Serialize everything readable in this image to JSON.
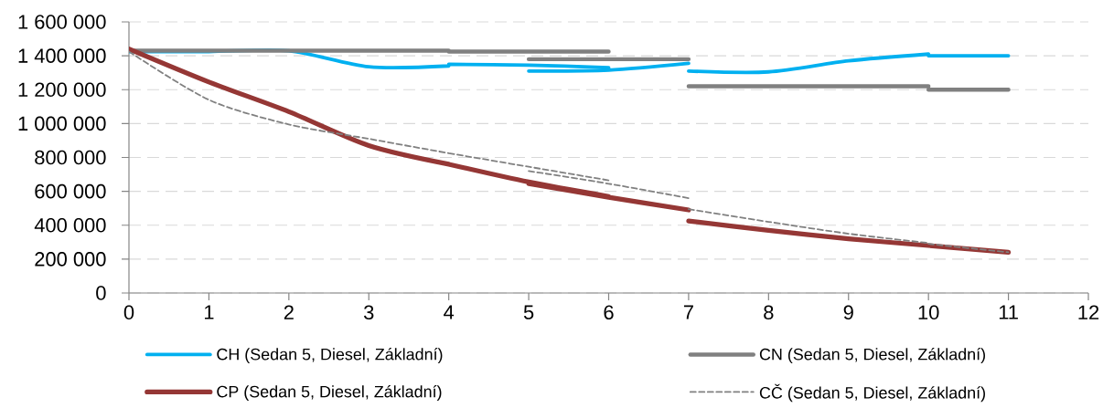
{
  "chart_data": {
    "type": "line",
    "xlim": [
      0,
      12
    ],
    "xticks": [
      0,
      1,
      2,
      3,
      4,
      5,
      6,
      7,
      8,
      9,
      10,
      11,
      12
    ],
    "ylim": [
      0,
      1600000
    ],
    "yticks": [
      0,
      {
        "value": 200000,
        "label": "200 000"
      },
      {
        "value": 400000,
        "label": "400 000"
      },
      {
        "value": 600000,
        "label": "600 000"
      },
      {
        "value": 800000,
        "label": "800 000"
      },
      {
        "value": 1000000,
        "label": "1 000 000"
      },
      {
        "value": 1200000,
        "label": "1 200 000"
      },
      {
        "value": 1400000,
        "label": "1 400 000"
      },
      {
        "value": 1600000,
        "label": "1 600 000"
      }
    ],
    "grid": "y",
    "legend": "bottom",
    "series": [
      {
        "name": "CH (Sedan 5, Diesel, Základní)",
        "color": "#00b0f0",
        "x": [
          0,
          1,
          2,
          3,
          4,
          null,
          4,
          5,
          6,
          null,
          5,
          6,
          7,
          null,
          7,
          8,
          9,
          10,
          null,
          10,
          11
        ],
        "values": [
          1425000,
          1425000,
          1430000,
          1335000,
          1340000,
          null,
          1350000,
          1345000,
          1330000,
          null,
          1310000,
          1315000,
          1355000,
          null,
          1310000,
          1305000,
          1370000,
          1410000,
          null,
          1400000,
          1400000
        ]
      },
      {
        "name": "CN (Sedan 5, Diesel, Základní)",
        "color": "#808080",
        "x": [
          0,
          1,
          2,
          3,
          4,
          null,
          4,
          5,
          6,
          null,
          5,
          6,
          7,
          null,
          7,
          8,
          9,
          10,
          null,
          10,
          11
        ],
        "values": [
          1430000,
          1430000,
          1430000,
          1430000,
          1430000,
          null,
          1425000,
          1425000,
          1425000,
          null,
          1380000,
          1380000,
          1380000,
          null,
          1220000,
          1220000,
          1220000,
          1220000,
          null,
          1200000,
          1200000
        ]
      },
      {
        "name": "CP (Sedan 5, Diesel, Základní)",
        "color": "#953735",
        "x": [
          0,
          1,
          2,
          3,
          4,
          null,
          4,
          5,
          6,
          null,
          5,
          6,
          7,
          null,
          7,
          8,
          9,
          10,
          null,
          10,
          11
        ],
        "values": [
          1440000,
          1245000,
          1070000,
          870000,
          760000,
          null,
          760000,
          655000,
          570000,
          null,
          645000,
          565000,
          490000,
          null,
          425000,
          370000,
          320000,
          280000,
          null,
          280000,
          240000
        ]
      },
      {
        "name": "CČ (Sedan 5, Diesel, Základní)",
        "color": "#808080",
        "line_style": "dashed",
        "x": [
          0,
          1,
          2,
          3,
          4,
          null,
          4,
          5,
          6,
          null,
          5,
          6,
          7,
          null,
          7,
          8,
          9,
          10,
          null,
          10,
          11
        ],
        "values": [
          1425000,
          1140000,
          995000,
          910000,
          825000,
          null,
          825000,
          745000,
          665000,
          null,
          720000,
          645000,
          560000,
          null,
          495000,
          420000,
          350000,
          295000,
          null,
          290000,
          240000
        ]
      }
    ]
  }
}
